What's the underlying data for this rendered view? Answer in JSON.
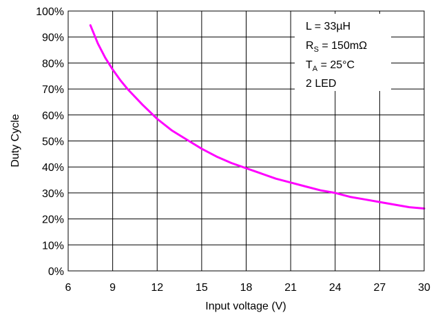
{
  "chart_data": {
    "type": "line",
    "title": "",
    "xlabel": "Input voltage (V)",
    "ylabel": "Duty Cycle",
    "xlim": [
      6,
      30
    ],
    "ylim": [
      0,
      100
    ],
    "x_ticks": [
      6,
      9,
      12,
      15,
      18,
      21,
      24,
      27,
      30
    ],
    "x_tick_labels": [
      "6",
      "9",
      "12",
      "15",
      "18",
      "21",
      "24",
      "27",
      "30"
    ],
    "y_ticks": [
      0,
      10,
      20,
      30,
      40,
      50,
      60,
      70,
      80,
      90,
      100
    ],
    "y_tick_labels": [
      "0%",
      "10%",
      "20%",
      "30%",
      "40%",
      "50%",
      "60%",
      "70%",
      "80%",
      "90%",
      "100%"
    ],
    "grid": true,
    "series": [
      {
        "color": "#ff00ff",
        "x": [
          7.5,
          8,
          8.5,
          9,
          9.5,
          10,
          11,
          12,
          13,
          14,
          15,
          16,
          17,
          18,
          19,
          20,
          21,
          22,
          23,
          24,
          25,
          26,
          27,
          28,
          29,
          30
        ],
        "y": [
          94.5,
          87.5,
          82,
          77.5,
          73.5,
          70,
          64,
          58.5,
          54,
          50.5,
          47,
          44,
          41.5,
          39.5,
          37.5,
          35.5,
          34,
          32.5,
          31,
          30,
          28.5,
          27.5,
          26.5,
          25.5,
          24.5,
          24
        ]
      }
    ],
    "annotations": {
      "lines": [
        {
          "main": "L = 33µH",
          "sub": "",
          "rest": ""
        },
        {
          "main": "R",
          "sub": "S",
          "rest": " = 150mΩ"
        },
        {
          "main": "T",
          "sub": "A",
          "rest": " = 25°C"
        },
        {
          "main": "2 LED",
          "sub": "",
          "rest": ""
        }
      ],
      "placement": "top-right"
    }
  }
}
